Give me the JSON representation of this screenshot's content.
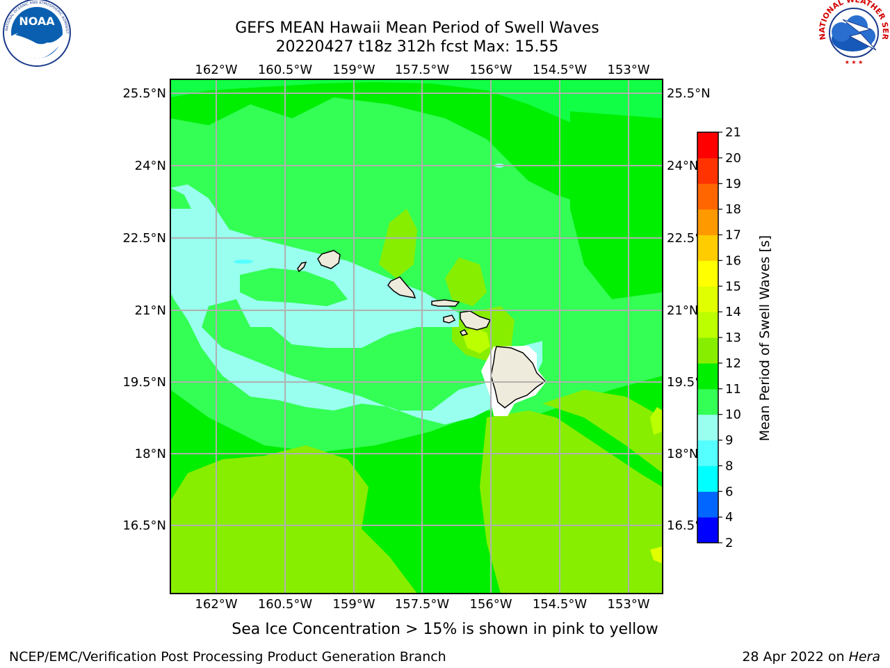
{
  "header": {
    "title_line1": "GEFS MEAN Hawaii Mean Period of Swell Waves",
    "title_line2": "20220427 t18z 312h fcst   Max: 15.55"
  },
  "logos": {
    "left": {
      "text": "NOAA",
      "icon": "noaa-logo-icon",
      "ring_text": "NATIONAL OCEANIC AND ATMOSPHERIC ADMINISTRATION · U.S. DEPARTMENT OF COMMERCE"
    },
    "right": {
      "icon": "nws-logo-icon",
      "ring_text": "NATIONAL WEATHER SERVICE"
    }
  },
  "map": {
    "lon_labels": [
      "162°W",
      "160.5°W",
      "159°W",
      "157.5°W",
      "156°W",
      "154.5°W",
      "153°W"
    ],
    "lat_labels": [
      "25.5°N",
      "24°N",
      "22.5°N",
      "21°N",
      "19.5°N",
      "18°N",
      "16.5°N"
    ],
    "colors": {
      "land": "#efebdc",
      "grid": "#b0b0b0",
      "background_field": "#33ff55"
    }
  },
  "colorbar": {
    "label": "Mean Period of Swell Waves [s]",
    "levels": [
      "2",
      "4",
      "6",
      "8",
      "9",
      "10",
      "11",
      "12",
      "13",
      "14",
      "15",
      "16",
      "17",
      "18",
      "19",
      "20",
      "21"
    ],
    "colors": [
      "#0000ff",
      "#0066ff",
      "#00ffff",
      "#55ffff",
      "#99ffee",
      "#33ff55",
      "#00ee00",
      "#88ee00",
      "#bbff00",
      "#e0ff00",
      "#ffff00",
      "#ffcc00",
      "#ff9900",
      "#ff6600",
      "#ff3300",
      "#ff0000"
    ]
  },
  "notes": {
    "sea_ice": "Sea Ice Concentration > 15% is shown in pink to yellow"
  },
  "footer": {
    "left": "NCEP/EMC/Verification Post Processing Product Generation Branch",
    "right_date": "28 Apr 2022 on ",
    "right_host": "Hera"
  }
}
